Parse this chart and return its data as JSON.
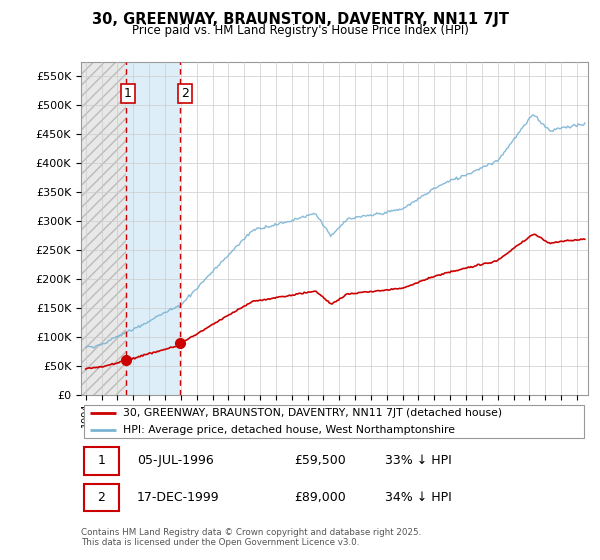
{
  "title": "30, GREENWAY, BRAUNSTON, DAVENTRY, NN11 7JT",
  "subtitle": "Price paid vs. HM Land Registry's House Price Index (HPI)",
  "legend_line1": "30, GREENWAY, BRAUNSTON, DAVENTRY, NN11 7JT (detached house)",
  "legend_line2": "HPI: Average price, detached house, West Northamptonshire",
  "footnote": "Contains HM Land Registry data © Crown copyright and database right 2025.\nThis data is licensed under the Open Government Licence v3.0.",
  "transaction1_date": "05-JUL-1996",
  "transaction1_price": "£59,500",
  "transaction1_hpi": "33% ↓ HPI",
  "transaction1_x": 1996.51,
  "transaction1_y": 59500,
  "transaction2_date": "17-DEC-1999",
  "transaction2_price": "£89,000",
  "transaction2_hpi": "34% ↓ HPI",
  "transaction2_x": 1999.96,
  "transaction2_y": 89000,
  "price_line_color": "#cc0000",
  "hpi_line_color": "#7ab3d4",
  "hatch_color": "#d8d8d8",
  "vline_color": "#cc0000",
  "between_fill_color": "#ddeeff",
  "ylim": [
    0,
    575000
  ],
  "xlim_start": 1993.7,
  "xlim_end": 2025.7,
  "yticks": [
    0,
    50000,
    100000,
    150000,
    200000,
    250000,
    300000,
    350000,
    400000,
    450000,
    500000,
    550000
  ],
  "xticks": [
    1994,
    1995,
    1996,
    1997,
    1998,
    1999,
    2000,
    2001,
    2002,
    2003,
    2004,
    2005,
    2006,
    2007,
    2008,
    2009,
    2010,
    2011,
    2012,
    2013,
    2014,
    2015,
    2016,
    2017,
    2018,
    2019,
    2020,
    2021,
    2022,
    2023,
    2024,
    2025
  ]
}
